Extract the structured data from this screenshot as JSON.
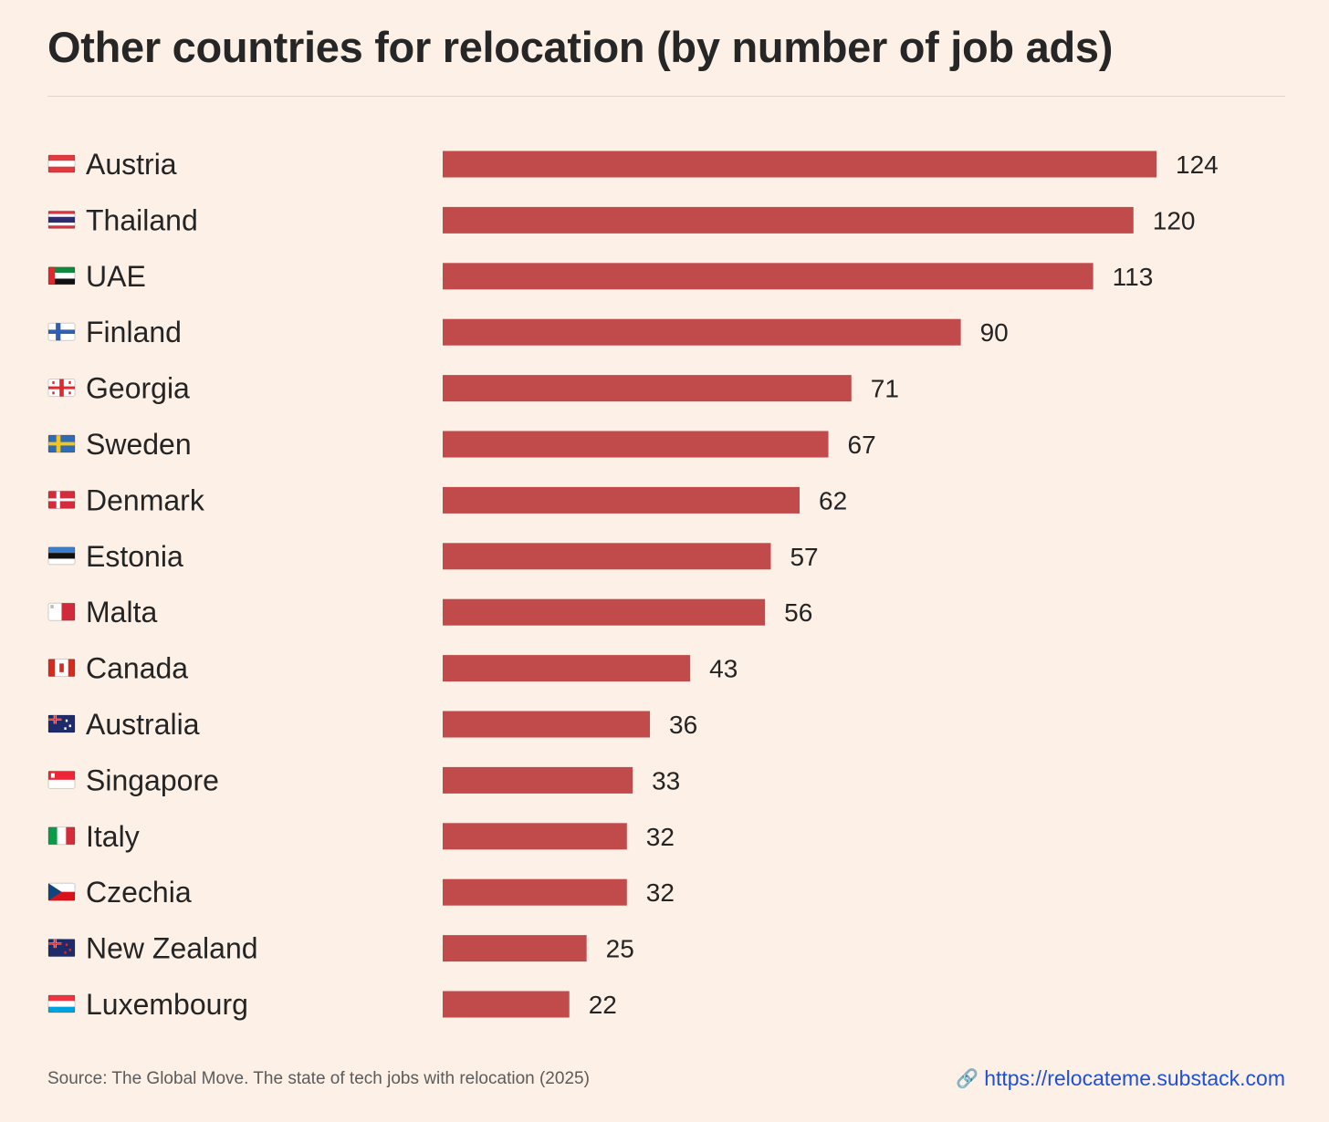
{
  "chart_data": {
    "type": "bar",
    "orientation": "horizontal",
    "title": "Other countries for relocation (by number of job ads)",
    "categories": [
      "Austria",
      "Thailand",
      "UAE",
      "Finland",
      "Georgia",
      "Sweden",
      "Denmark",
      "Estonia",
      "Malta",
      "Canada",
      "Australia",
      "Singapore",
      "Italy",
      "Czechia",
      "New Zealand",
      "Luxembourg"
    ],
    "values": [
      124,
      120,
      113,
      90,
      71,
      67,
      62,
      57,
      56,
      43,
      36,
      33,
      32,
      32,
      25,
      22
    ],
    "xlim": [
      0,
      124
    ],
    "xlabel": "",
    "ylabel": "",
    "grid": false,
    "bar_color": "#c14b4b"
  },
  "footer": {
    "source": "Source: The Global Move. The state of tech jobs with relocation (2025)",
    "link": "https://relocateme.substack.com"
  }
}
